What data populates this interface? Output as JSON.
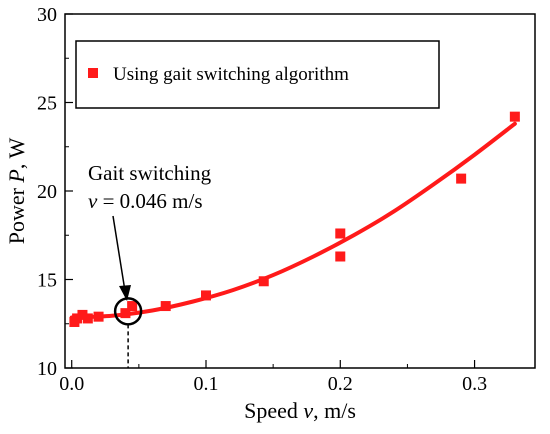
{
  "chart_data": {
    "type": "scatter",
    "xlabel_pre": "Speed ",
    "xlabel_var": "v",
    "xlabel_post": ", m/s",
    "ylabel_pre": "Power ",
    "ylabel_var": "P",
    "ylabel_post": ", W",
    "xlim": [
      -0.005,
      0.345
    ],
    "ylim": [
      10,
      30
    ],
    "x_ticks": [
      0.0,
      0.1,
      0.2,
      0.3
    ],
    "x_tick_labels": [
      "0.0",
      "0.1",
      "0.2",
      "0.3"
    ],
    "y_ticks": [
      10,
      15,
      20,
      25,
      30
    ],
    "y_tick_labels": [
      "10",
      "15",
      "20",
      "25",
      "30"
    ],
    "grid": false,
    "legend_position": "top",
    "series": [
      {
        "name": "Using gait switching algorithm",
        "color": "#ff1a1a",
        "marker": "square",
        "points": [
          {
            "x": 0.002,
            "y": 12.6
          },
          {
            "x": 0.004,
            "y": 12.8
          },
          {
            "x": 0.008,
            "y": 13.0
          },
          {
            "x": 0.012,
            "y": 12.8
          },
          {
            "x": 0.02,
            "y": 12.9
          },
          {
            "x": 0.04,
            "y": 13.1
          },
          {
            "x": 0.045,
            "y": 13.5
          },
          {
            "x": 0.07,
            "y": 13.5
          },
          {
            "x": 0.1,
            "y": 14.1
          },
          {
            "x": 0.143,
            "y": 14.9
          },
          {
            "x": 0.2,
            "y": 17.6
          },
          {
            "x": 0.2,
            "y": 16.3
          },
          {
            "x": 0.29,
            "y": 20.7
          },
          {
            "x": 0.33,
            "y": 24.2
          }
        ]
      }
    ],
    "fit_curve": {
      "color": "#ff1a1a",
      "points": [
        {
          "x": 0.0,
          "y": 12.85
        },
        {
          "x": 0.03,
          "y": 12.95
        },
        {
          "x": 0.06,
          "y": 13.25
        },
        {
          "x": 0.09,
          "y": 13.75
        },
        {
          "x": 0.12,
          "y": 14.4
        },
        {
          "x": 0.15,
          "y": 15.25
        },
        {
          "x": 0.18,
          "y": 16.3
        },
        {
          "x": 0.21,
          "y": 17.5
        },
        {
          "x": 0.24,
          "y": 18.85
        },
        {
          "x": 0.27,
          "y": 20.4
        },
        {
          "x": 0.3,
          "y": 22.05
        },
        {
          "x": 0.33,
          "y": 23.8
        }
      ]
    },
    "annotation": {
      "line1": "Gait switching",
      "line2_var": "v",
      "line2_rest": " = 0.046 m/s",
      "circle_center": {
        "x": 0.042,
        "y": 13.2
      },
      "dashed_drop_x": 0.042
    }
  }
}
